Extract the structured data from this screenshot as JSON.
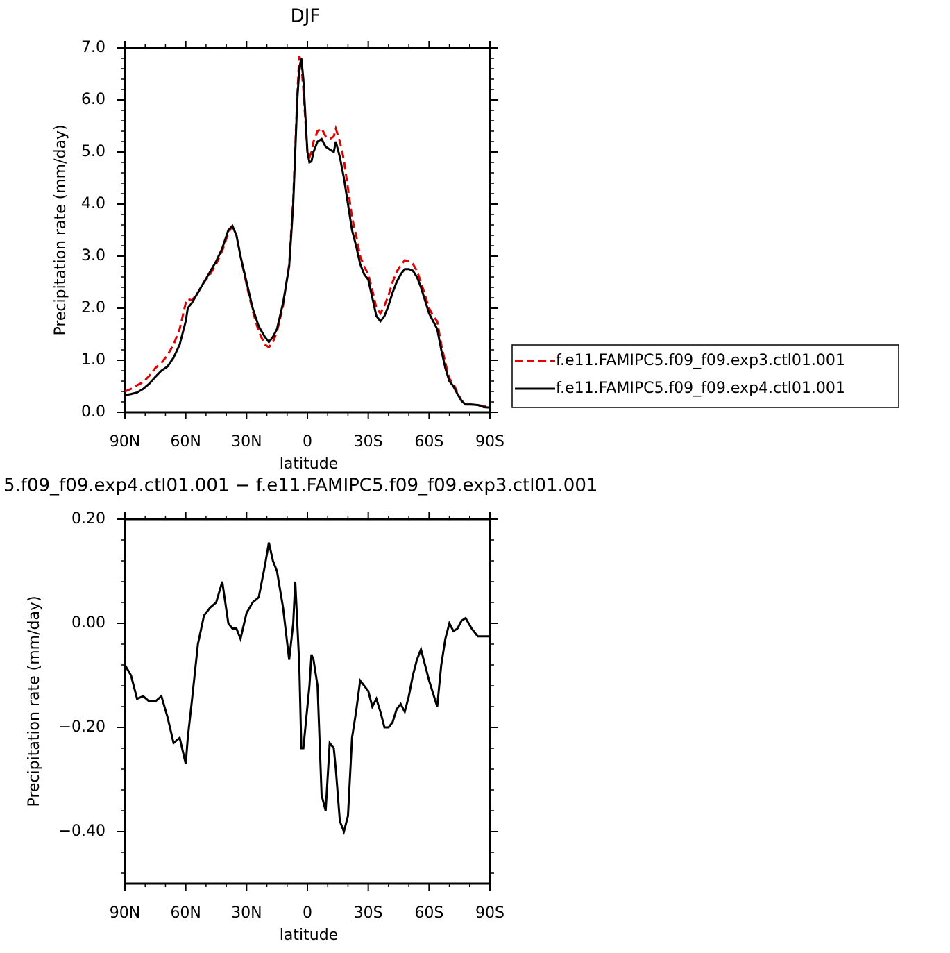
{
  "chart_data": [
    {
      "type": "line",
      "title": "DJF",
      "xlabel": "latitude",
      "ylabel": "Precipitation rate (mm/day)",
      "x": [
        90,
        87,
        84,
        81,
        78,
        75,
        72,
        69,
        66,
        63,
        60,
        59,
        57,
        54,
        51,
        48,
        45,
        42,
        39,
        37,
        35,
        33,
        30,
        27,
        24,
        21,
        19,
        17,
        15,
        12,
        9,
        7,
        6,
        5,
        4,
        3,
        2,
        1,
        0,
        -1,
        -2,
        -3,
        -5,
        -7,
        -9,
        -11,
        -13,
        -14,
        -16,
        -18,
        -20,
        -22,
        -24,
        -26,
        -28,
        -30,
        -32,
        -34,
        -36,
        -38,
        -40,
        -42,
        -44,
        -46,
        -48,
        -50,
        -52,
        -54,
        -56,
        -58,
        -60,
        -62,
        -64,
        -66,
        -68,
        -70,
        -72,
        -74,
        -76,
        -78,
        -81,
        -84,
        -87,
        -90
      ],
      "xlim": [
        90,
        -90
      ],
      "xticks": [
        {
          "value": 90,
          "label": "90N"
        },
        {
          "value": 60,
          "label": "60N"
        },
        {
          "value": 30,
          "label": "30N"
        },
        0,
        {
          "value": -30,
          "label": "30S"
        },
        {
          "value": -60,
          "label": "60S"
        },
        {
          "value": -90,
          "label": "90S"
        }
      ],
      "ylim": [
        0,
        7
      ],
      "yticks": [
        {
          "value": 0,
          "label": "0.0"
        },
        {
          "value": 1,
          "label": "1.0"
        },
        {
          "value": 2,
          "label": "2.0"
        },
        {
          "value": 3,
          "label": "3.0"
        },
        {
          "value": 4,
          "label": "4.0"
        },
        {
          "value": 5,
          "label": "5.0"
        },
        {
          "value": 6,
          "label": "6.0"
        },
        {
          "value": 7,
          "label": "7.0"
        }
      ],
      "legend": "right",
      "series": [
        {
          "name": "f.e11.FAMIPC5.f09_f09.exp3.ctl01.001",
          "color": "#e00000",
          "linestyle": "dashed",
          "values": [
            0.4,
            0.45,
            0.52,
            0.58,
            0.7,
            0.85,
            0.95,
            1.1,
            1.3,
            1.6,
            2.1,
            2.18,
            2.15,
            2.3,
            2.5,
            2.65,
            2.85,
            3.1,
            3.45,
            3.58,
            3.4,
            3.0,
            2.45,
            1.95,
            1.55,
            1.3,
            1.25,
            1.35,
            1.55,
            2.05,
            2.85,
            4.1,
            5.1,
            6.1,
            6.85,
            6.7,
            6.2,
            5.6,
            5.0,
            4.9,
            5.0,
            5.2,
            5.4,
            5.45,
            5.3,
            5.25,
            5.3,
            5.45,
            5.2,
            4.85,
            4.3,
            3.75,
            3.4,
            3.0,
            2.8,
            2.65,
            2.35,
            2.0,
            1.9,
            2.05,
            2.25,
            2.5,
            2.7,
            2.82,
            2.92,
            2.9,
            2.85,
            2.72,
            2.5,
            2.25,
            2.0,
            1.85,
            1.75,
            1.3,
            0.95,
            0.65,
            0.55,
            0.38,
            0.22,
            0.16,
            0.15,
            0.14,
            0.12,
            0.1
          ]
        },
        {
          "name": "f.e11.FAMIPC5.f09_f09.exp4.ctl01.001",
          "color": "#000000",
          "linestyle": "solid",
          "values": [
            0.33,
            0.35,
            0.38,
            0.45,
            0.55,
            0.68,
            0.8,
            0.88,
            1.05,
            1.3,
            1.75,
            2.0,
            2.1,
            2.3,
            2.5,
            2.7,
            2.9,
            3.15,
            3.5,
            3.58,
            3.4,
            3.0,
            2.5,
            2.0,
            1.65,
            1.45,
            1.35,
            1.45,
            1.6,
            2.1,
            2.8,
            4.0,
            5.0,
            6.0,
            6.6,
            6.8,
            6.4,
            5.7,
            5.0,
            4.8,
            4.82,
            5.0,
            5.2,
            5.25,
            5.1,
            5.05,
            5.0,
            5.2,
            4.9,
            4.5,
            4.0,
            3.5,
            3.2,
            2.85,
            2.65,
            2.55,
            2.2,
            1.85,
            1.75,
            1.85,
            2.05,
            2.3,
            2.5,
            2.65,
            2.75,
            2.75,
            2.72,
            2.6,
            2.4,
            2.15,
            1.9,
            1.75,
            1.6,
            1.2,
            0.85,
            0.6,
            0.5,
            0.35,
            0.22,
            0.15,
            0.15,
            0.14,
            0.1,
            0.09
          ]
        }
      ]
    },
    {
      "type": "line",
      "title": "5.f09_f09.exp4.ctl01.001 − f.e11.FAMIPC5.f09_f09.exp3.ctl01.001",
      "xlabel": "latitude",
      "ylabel": "Precipitation rate (mm/day)",
      "x": [
        90,
        87,
        84,
        81,
        78,
        75,
        72,
        69,
        66,
        63,
        60,
        59,
        57,
        54,
        51,
        48,
        45,
        42,
        39,
        37,
        35,
        33,
        30,
        27,
        24,
        21,
        19,
        17,
        15,
        12,
        9,
        7,
        6,
        5,
        4,
        3,
        2,
        1,
        0,
        -1,
        -2,
        -3,
        -5,
        -7,
        -9,
        -11,
        -13,
        -14,
        -16,
        -18,
        -20,
        -22,
        -24,
        -26,
        -28,
        -30,
        -32,
        -34,
        -36,
        -38,
        -40,
        -42,
        -44,
        -46,
        -48,
        -50,
        -52,
        -54,
        -56,
        -58,
        -60,
        -62,
        -64,
        -66,
        -68,
        -70,
        -72,
        -74,
        -76,
        -78,
        -81,
        -84,
        -87,
        -90
      ],
      "xlim": [
        90,
        -90
      ],
      "xticks": [
        {
          "value": 90,
          "label": "90N"
        },
        {
          "value": 60,
          "label": "60N"
        },
        {
          "value": 30,
          "label": "30N"
        },
        0,
        {
          "value": -30,
          "label": "30S"
        },
        {
          "value": -60,
          "label": "60S"
        },
        {
          "value": -90,
          "label": "90S"
        }
      ],
      "ylim": [
        -0.5,
        0.2
      ],
      "yticks": [
        {
          "value": 0.2,
          "label": "0.20"
        },
        {
          "value": 0,
          "label": "0.00"
        },
        {
          "value": -0.2,
          "label": "−0.20"
        },
        {
          "value": -0.4,
          "label": "−0.40"
        }
      ],
      "series": [
        {
          "color": "#000000",
          "linestyle": "solid",
          "values": [
            -0.08,
            -0.1,
            -0.145,
            -0.14,
            -0.15,
            -0.15,
            -0.14,
            -0.18,
            -0.23,
            -0.22,
            -0.27,
            -0.22,
            -0.15,
            -0.04,
            0.015,
            0.03,
            0.04,
            0.08,
            0.0,
            -0.01,
            -0.01,
            -0.03,
            0.02,
            0.04,
            0.05,
            0.11,
            0.155,
            0.12,
            0.1,
            0.03,
            -0.07,
            0.0,
            0.08,
            0.0,
            -0.08,
            -0.24,
            -0.24,
            -0.2,
            -0.16,
            -0.12,
            -0.06,
            -0.07,
            -0.12,
            -0.33,
            -0.36,
            -0.23,
            -0.24,
            -0.28,
            -0.38,
            -0.4,
            -0.37,
            -0.22,
            -0.17,
            -0.11,
            -0.12,
            -0.13,
            -0.16,
            -0.145,
            -0.17,
            -0.2,
            -0.2,
            -0.19,
            -0.165,
            -0.155,
            -0.17,
            -0.14,
            -0.1,
            -0.07,
            -0.05,
            -0.08,
            -0.11,
            -0.135,
            -0.16,
            -0.08,
            -0.03,
            0.0,
            -0.015,
            -0.01,
            0.005,
            0.01,
            -0.01,
            -0.025,
            -0.025,
            -0.025
          ]
        }
      ]
    }
  ]
}
